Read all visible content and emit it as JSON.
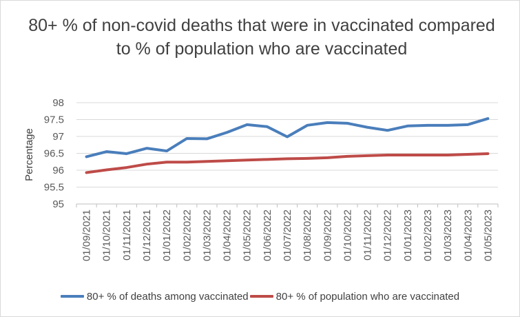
{
  "chart_data": {
    "type": "line",
    "title": "80+ % of non-covid deaths that were in vaccinated compared to % of population who are vaccinated",
    "ylabel": "Percentage",
    "xlabel": "",
    "ylim": [
      95,
      98
    ],
    "yticks": [
      "95",
      "95.5",
      "96",
      "96.5",
      "97",
      "97.5",
      "98"
    ],
    "grid": true,
    "legend": "bottom",
    "categories": [
      "01/09/2021",
      "01/10/2021",
      "01/11/2021",
      "01/12/2021",
      "01/01/2022",
      "01/02/2022",
      "01/03/2022",
      "01/04/2022",
      "01/05/2022",
      "01/06/2022",
      "01/07/2022",
      "01/08/2022",
      "01/09/2022",
      "01/10/2022",
      "01/11/2022",
      "01/12/2022",
      "01/01/2023",
      "01/02/2023",
      "01/03/2023",
      "01/04/2023",
      "01/05/2023"
    ],
    "series": [
      {
        "name": "80+ % of deaths among vaccinated",
        "color": "#4a7ebb",
        "values": [
          96.4,
          96.55,
          96.49,
          96.65,
          96.57,
          96.94,
          96.93,
          97.12,
          97.35,
          97.29,
          96.99,
          97.33,
          97.41,
          97.39,
          97.27,
          97.18,
          97.31,
          97.33,
          97.33,
          97.35,
          97.53
        ]
      },
      {
        "name": "80+ % of population who are vaccinated",
        "color": "#be4b48",
        "values": [
          95.93,
          96.01,
          96.08,
          96.18,
          96.24,
          96.24,
          96.26,
          96.28,
          96.3,
          96.32,
          96.34,
          96.35,
          96.37,
          96.41,
          96.43,
          96.45,
          96.45,
          96.45,
          96.45,
          96.47,
          96.49
        ]
      }
    ]
  }
}
